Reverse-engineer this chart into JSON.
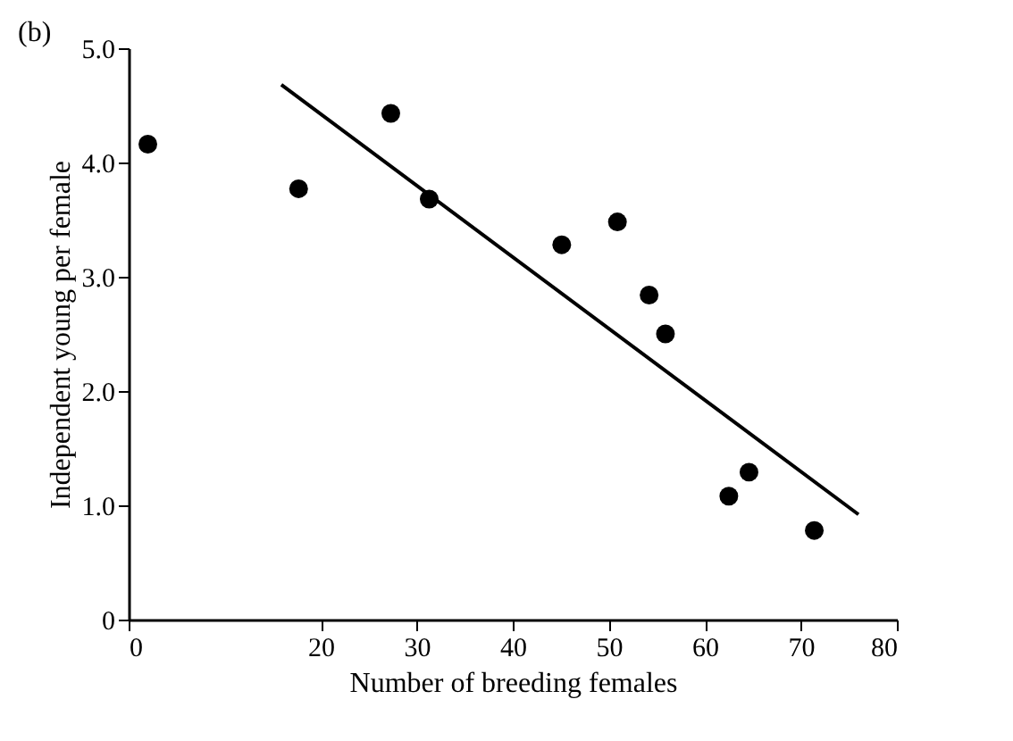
{
  "chart_data": {
    "type": "scatter",
    "title": "(b)",
    "xlabel": "Number of breeding females",
    "ylabel": "Independent young per female",
    "xlim": [
      0,
      80
    ],
    "xticks": [
      0,
      20,
      30,
      40,
      50,
      60,
      70,
      80
    ],
    "ylim": [
      0,
      5
    ],
    "yticks": [
      0,
      {
        "value": 1,
        "label": "1.0"
      },
      {
        "value": 2,
        "label": "2.0"
      },
      {
        "value": 3,
        "label": "3.0"
      },
      {
        "value": 4,
        "label": "4.0"
      },
      {
        "value": 5,
        "label": "5.0"
      }
    ],
    "grid": false,
    "series": [
      {
        "color": "#000000",
        "marker": "circle",
        "x": [
          2,
          17.7,
          27.3,
          31.3,
          45.1,
          50.9,
          54.2,
          55.9,
          62.5,
          64.6,
          71.4
        ],
        "values": [
          4.16,
          3.77,
          4.43,
          3.68,
          3.28,
          3.48,
          2.84,
          2.5,
          1.08,
          1.29,
          0.78
        ]
      },
      {
        "type": "line",
        "color": "#000000",
        "line_style": "solid",
        "x": [
          15.9,
          76
        ],
        "values": [
          4.68,
          0.92
        ]
      }
    ]
  }
}
